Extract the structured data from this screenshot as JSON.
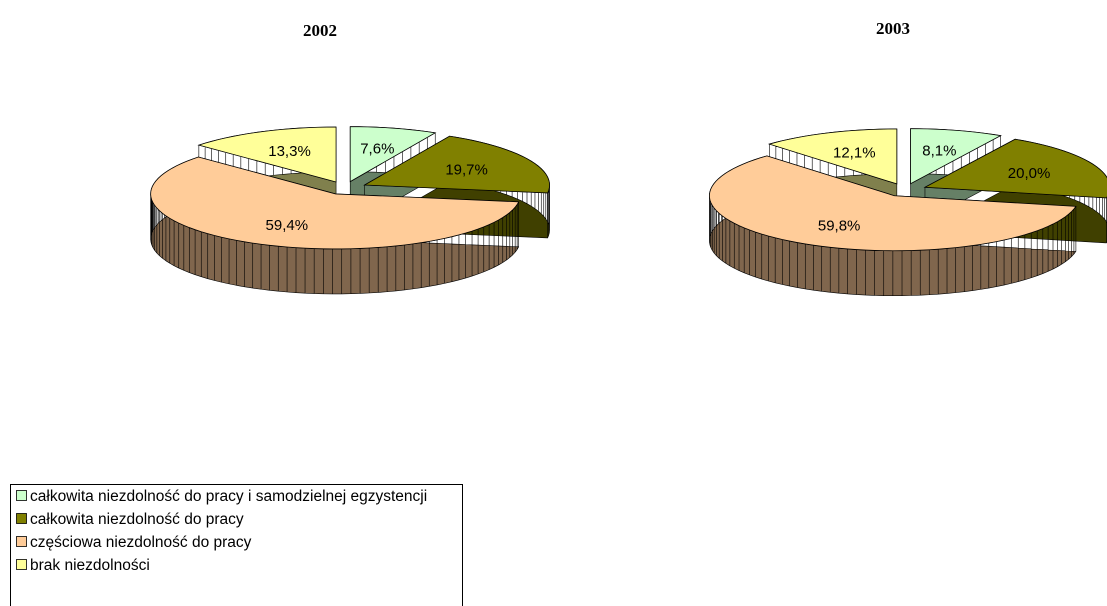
{
  "chart_data": [
    {
      "type": "pie",
      "title": "2002",
      "categories": [
        "całkowita niezdolność do pracy i samodzielnej egzystencji",
        "całkowita niezdolność do pracy",
        "częściowa niezdolność do pracy",
        "brak niezdolności"
      ],
      "colors": [
        "#ccffcc",
        "#808000",
        "#ffcc99",
        "#ffff99"
      ],
      "values": [
        7.6,
        19.7,
        59.4,
        13.3
      ],
      "value_labels": [
        "7,6%",
        "19,7%",
        "59,4%",
        "13,3%"
      ]
    },
    {
      "type": "pie",
      "title": "2003",
      "categories": [
        "całkowita niezdolność do pracy i samodzielnej egzystencji",
        "całkowita niezdolność do pracy",
        "częściowa niezdolność do pracy",
        "brak niezdolności"
      ],
      "colors": [
        "#ccffcc",
        "#808000",
        "#ffcc99",
        "#ffff99"
      ],
      "values": [
        8.1,
        20.0,
        59.8,
        12.1
      ],
      "value_labels": [
        "8,1%",
        "20,0%",
        "59,8%",
        "12,1%"
      ]
    }
  ]
}
